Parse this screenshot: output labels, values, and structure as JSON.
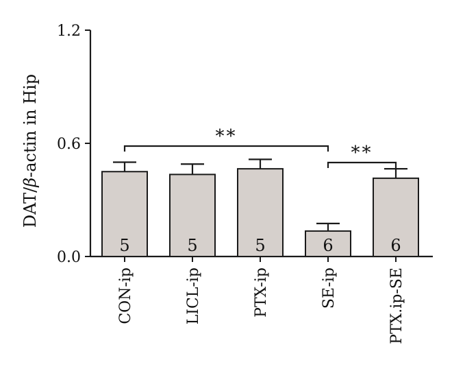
{
  "chart_data": {
    "type": "bar",
    "ylabel_prefix": "DAT/",
    "ylabel_greek": "β",
    "ylabel_suffix": "-actin in Hip",
    "ylim": [
      0,
      1.2
    ],
    "yticks": [
      "0.0",
      "0.6",
      "1.2"
    ],
    "ytick_values": [
      0,
      0.6,
      1.2
    ],
    "categories": [
      "CON-ip",
      "LICL-ip",
      "PTX-ip",
      "SE-ip",
      "PTX.ip-SE"
    ],
    "values": [
      0.45,
      0.435,
      0.465,
      0.135,
      0.415
    ],
    "errors": [
      0.05,
      0.055,
      0.05,
      0.04,
      0.05
    ],
    "n": [
      "5",
      "5",
      "5",
      "6",
      "6"
    ],
    "significance": [
      {
        "from": 0,
        "to": 3,
        "label": "**"
      },
      {
        "from": 3,
        "to": 4,
        "label": "**"
      }
    ],
    "colors": {
      "bar": "#d6d0cc",
      "stroke": "#1a1a1a"
    }
  }
}
